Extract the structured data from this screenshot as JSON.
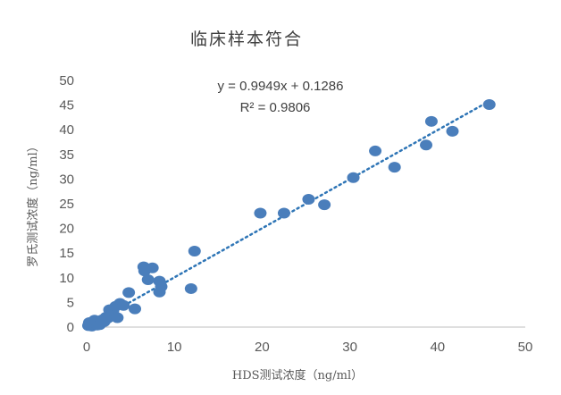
{
  "chart_data": {
    "type": "scatter",
    "title": "临床样本符合",
    "xlabel": "HDS测试浓度（ng/ml）",
    "ylabel": "罗氏测试浓度（ng/ml）",
    "xlim": [
      0,
      50
    ],
    "ylim": [
      0,
      50
    ],
    "x_ticks": [
      "0",
      "10",
      "20",
      "30",
      "40",
      "50"
    ],
    "y_ticks": [
      "0",
      "5",
      "10",
      "15",
      "20",
      "25",
      "30",
      "35",
      "40",
      "45",
      "50"
    ],
    "grid": false,
    "legend": "none",
    "marker_color": "#4a7ebb",
    "trendline": {
      "style": "dotted",
      "color": "#2e75b6",
      "slope": 0.9949,
      "intercept": 0.1286,
      "equation": "y = 0.9949x + 0.1286",
      "r_squared": "R² = 0.9806"
    },
    "points": [
      {
        "x": 0.2,
        "y": 0.3
      },
      {
        "x": 0.4,
        "y": 0.5
      },
      {
        "x": 0.6,
        "y": 0.2
      },
      {
        "x": 0.8,
        "y": 0.6
      },
      {
        "x": 1.0,
        "y": 0.8
      },
      {
        "x": 1.2,
        "y": 0.4
      },
      {
        "x": 1.4,
        "y": 1.2
      },
      {
        "x": 1.6,
        "y": 0.9
      },
      {
        "x": 1.8,
        "y": 1.5
      },
      {
        "x": 2.0,
        "y": 1.1
      },
      {
        "x": 2.2,
        "y": 2.0
      },
      {
        "x": 2.4,
        "y": 1.8
      },
      {
        "x": 0.3,
        "y": 0.9
      },
      {
        "x": 0.9,
        "y": 1.4
      },
      {
        "x": 1.5,
        "y": 0.5
      },
      {
        "x": 2.6,
        "y": 3.5
      },
      {
        "x": 2.8,
        "y": 2.5
      },
      {
        "x": 3.0,
        "y": 3.2
      },
      {
        "x": 3.3,
        "y": 4.2
      },
      {
        "x": 3.5,
        "y": 1.9
      },
      {
        "x": 3.8,
        "y": 4.8
      },
      {
        "x": 4.2,
        "y": 4.4
      },
      {
        "x": 4.8,
        "y": 7.0
      },
      {
        "x": 5.5,
        "y": 3.7
      },
      {
        "x": 6.5,
        "y": 12.2
      },
      {
        "x": 6.6,
        "y": 11.4
      },
      {
        "x": 7.0,
        "y": 9.6
      },
      {
        "x": 7.5,
        "y": 12.0
      },
      {
        "x": 8.3,
        "y": 9.3
      },
      {
        "x": 8.3,
        "y": 7.1
      },
      {
        "x": 8.5,
        "y": 8.2
      },
      {
        "x": 11.9,
        "y": 7.8
      },
      {
        "x": 12.3,
        "y": 15.4
      },
      {
        "x": 19.8,
        "y": 23.1
      },
      {
        "x": 22.5,
        "y": 23.1
      },
      {
        "x": 25.3,
        "y": 25.9
      },
      {
        "x": 27.1,
        "y": 24.8
      },
      {
        "x": 30.4,
        "y": 30.3
      },
      {
        "x": 32.9,
        "y": 35.7
      },
      {
        "x": 35.1,
        "y": 32.4
      },
      {
        "x": 38.7,
        "y": 36.9
      },
      {
        "x": 39.3,
        "y": 41.7
      },
      {
        "x": 41.7,
        "y": 39.7
      },
      {
        "x": 45.9,
        "y": 45.1
      }
    ]
  }
}
